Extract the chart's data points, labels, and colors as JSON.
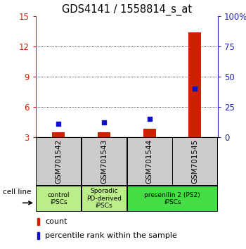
{
  "title": "GDS4141 / 1558814_s_at",
  "samples": [
    "GSM701542",
    "GSM701543",
    "GSM701544",
    "GSM701545"
  ],
  "counts": [
    3.5,
    3.45,
    3.85,
    13.4
  ],
  "percentile_ranks": [
    11,
    12,
    15,
    40
  ],
  "ylim_left": [
    3,
    15
  ],
  "ylim_right": [
    0,
    100
  ],
  "yticks_left": [
    3,
    6,
    9,
    12,
    15
  ],
  "yticks_right": [
    0,
    25,
    50,
    75,
    100
  ],
  "bar_color": "#cc2200",
  "dot_color": "#1111cc",
  "axis_left_color": "#cc2200",
  "axis_right_color": "#2222bb",
  "groups": [
    {
      "label": "control\niPSCs",
      "start": 0,
      "end": 1,
      "color": "#bbee88"
    },
    {
      "label": "Sporadic\nPD-derived\niPSCs",
      "start": 1,
      "end": 2,
      "color": "#bbee88"
    },
    {
      "label": "presenilin 2 (PS2)\niPSCs",
      "start": 2,
      "end": 4,
      "color": "#44dd44"
    }
  ],
  "cell_line_label": "cell line",
  "legend_count": "count",
  "legend_percentile": "percentile rank within the sample",
  "plot_bg_color": "#ffffff",
  "sample_bg_color": "#cccccc",
  "title_fontsize": 10.5,
  "tick_fontsize": 8.5,
  "sample_fontsize": 7.5,
  "group_fontsize": 6.5,
  "legend_fontsize": 8
}
